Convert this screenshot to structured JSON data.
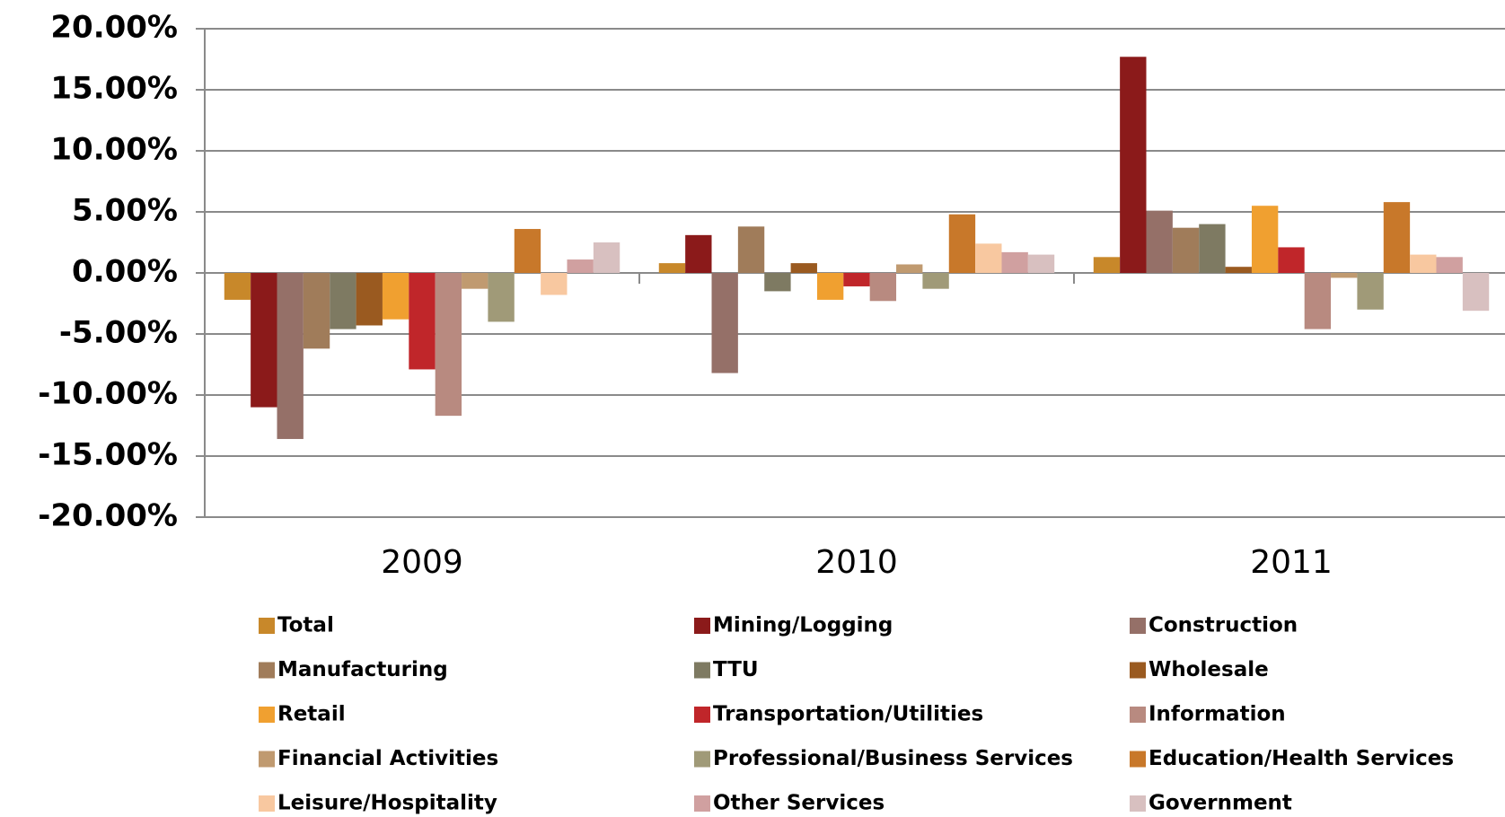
{
  "chart_data": {
    "type": "bar",
    "categories": [
      "2009",
      "2010",
      "2011"
    ],
    "ylim": [
      -20,
      20
    ],
    "yticks": [
      {
        "value": -20,
        "label": "-20.00%"
      },
      {
        "value": -15,
        "label": "-15.00%"
      },
      {
        "value": -10,
        "label": "-10.00%"
      },
      {
        "value": -5,
        "label": "-5.00%"
      },
      {
        "value": 0,
        "label": "0.00%"
      },
      {
        "value": 5,
        "label": "5.00%"
      },
      {
        "value": 10,
        "label": "10.00%"
      },
      {
        "value": 15,
        "label": "15.00%"
      },
      {
        "value": 20,
        "label": "20.00%"
      }
    ],
    "grid": true,
    "legend": "bottom",
    "series": [
      {
        "name": "Total",
        "color": "#c8882a",
        "values": [
          -2.2,
          0.8,
          1.3
        ]
      },
      {
        "name": "Mining/Logging",
        "color": "#8b1a1a",
        "values": [
          -11,
          3.1,
          17.7
        ]
      },
      {
        "name": "Construction",
        "color": "#957068",
        "values": [
          -13.6,
          -8.2,
          5.1
        ]
      },
      {
        "name": "Manufacturing",
        "color": "#a07c5a",
        "values": [
          -6.2,
          3.8,
          3.7
        ]
      },
      {
        "name": "TTU",
        "color": "#7e7a62",
        "values": [
          -4.6,
          -1.5,
          4.0
        ]
      },
      {
        "name": "Wholesale",
        "color": "#9a5a20",
        "values": [
          -4.3,
          0.8,
          0.5
        ]
      },
      {
        "name": "Retail",
        "color": "#f0a030",
        "values": [
          -3.8,
          -2.2,
          5.5
        ]
      },
      {
        "name": "Transportation/Utilities",
        "color": "#c0262a",
        "values": [
          -7.9,
          -1.1,
          2.1
        ]
      },
      {
        "name": "Information",
        "color": "#b88a80",
        "values": [
          -11.7,
          -2.3,
          -4.6
        ]
      },
      {
        "name": "Financial Activities",
        "color": "#c09a70",
        "values": [
          -1.3,
          0.7,
          -0.4
        ]
      },
      {
        "name": "Professional/Business Services",
        "color": "#a09a78",
        "values": [
          -4.0,
          -1.3,
          -3.0
        ]
      },
      {
        "name": "Education/Health Services",
        "color": "#c8782a",
        "values": [
          3.6,
          4.8,
          5.8
        ]
      },
      {
        "name": "Leisure/Hospitality",
        "color": "#f8c8a0",
        "values": [
          -1.8,
          2.4,
          1.5
        ]
      },
      {
        "name": "Other Services",
        "color": "#d0a0a0",
        "values": [
          1.1,
          1.7,
          1.3
        ]
      },
      {
        "name": "Government",
        "color": "#d8c0c0",
        "values": [
          2.5,
          1.5,
          -3.1
        ]
      }
    ]
  }
}
